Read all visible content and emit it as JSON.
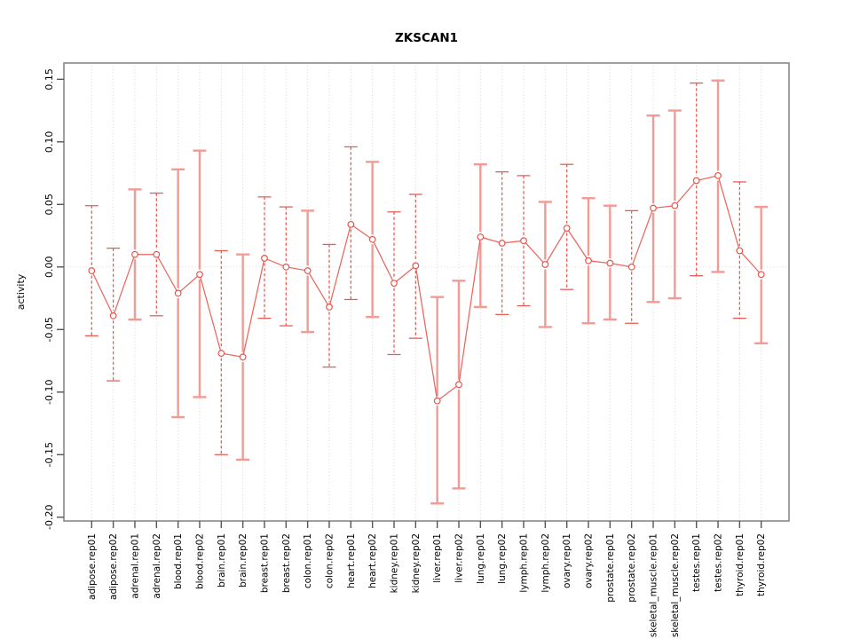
{
  "header": {
    "title": "ZKSCAN1"
  },
  "chart_data": {
    "type": "line",
    "title": "ZKSCAN1",
    "xlabel": "",
    "ylabel": "activity",
    "ylim": [
      -0.203,
      0.163
    ],
    "yticks": [
      0.15,
      0.1,
      0.05,
      0.0,
      -0.05,
      -0.1,
      -0.15,
      -0.2
    ],
    "ytick_labels": [
      "0.15",
      "0.10",
      "0.05",
      "0.00",
      "-0.05",
      "-0.10",
      "-0.15",
      "-0.20"
    ],
    "grid": "vertical dotted line at each category; dotted horizontal line at y=0",
    "legend_position": "none",
    "marker": "open-circle",
    "categories": [
      "adipose.rep01",
      "adipose.rep02",
      "adrenal.rep01",
      "adrenal.rep02",
      "blood.rep01",
      "blood.rep02",
      "brain.rep01",
      "brain.rep02",
      "breast.rep01",
      "breast.rep02",
      "colon.rep01",
      "colon.rep02",
      "heart.rep01",
      "heart.rep02",
      "kidney.rep01",
      "kidney.rep02",
      "liver.rep01",
      "liver.rep02",
      "lung.rep01",
      "lung.rep02",
      "lymph.rep01",
      "lymph.rep02",
      "ovary.rep01",
      "ovary.rep02",
      "prostate.rep01",
      "prostate.rep02",
      "skeletal_muscle.rep01",
      "skeletal_muscle.rep02",
      "testes.rep01",
      "testes.rep02",
      "thyroid.rep01",
      "thyroid.rep02"
    ],
    "series": [
      {
        "name": "activity",
        "values": [
          -0.003,
          -0.039,
          0.01,
          0.01,
          -0.021,
          -0.006,
          -0.069,
          -0.072,
          0.007,
          0.0,
          -0.003,
          -0.032,
          0.034,
          0.022,
          -0.013,
          0.001,
          -0.107,
          -0.094,
          0.024,
          0.019,
          0.021,
          0.002,
          0.031,
          0.005,
          0.003,
          0.0,
          0.047,
          0.049,
          0.069,
          0.073,
          0.013,
          -0.006
        ],
        "error_low": [
          -0.055,
          -0.091,
          -0.042,
          -0.039,
          -0.12,
          -0.104,
          -0.15,
          -0.154,
          -0.041,
          -0.047,
          -0.052,
          -0.08,
          -0.026,
          -0.04,
          -0.07,
          -0.057,
          -0.189,
          -0.177,
          -0.032,
          -0.038,
          -0.031,
          -0.048,
          -0.018,
          -0.045,
          -0.042,
          -0.045,
          -0.028,
          -0.025,
          -0.007,
          -0.004,
          -0.041,
          -0.061
        ],
        "error_high": [
          0.049,
          0.015,
          0.062,
          0.059,
          0.078,
          0.093,
          0.013,
          0.01,
          0.056,
          0.048,
          0.045,
          0.018,
          0.096,
          0.084,
          0.044,
          0.058,
          -0.024,
          -0.011,
          0.082,
          0.076,
          0.073,
          0.052,
          0.082,
          0.055,
          0.049,
          0.045,
          0.121,
          0.125,
          0.147,
          0.149,
          0.068,
          0.048
        ]
      }
    ],
    "error_bar_styles": [
      "dashed",
      "dashed",
      "solid",
      "dashed",
      "solid",
      "solid",
      "dashed",
      "solid",
      "dashed",
      "dashed",
      "solid",
      "dashed",
      "dashed",
      "solid",
      "dashed",
      "dashed",
      "solid",
      "solid",
      "solid",
      "dashed",
      "dashed",
      "solid",
      "dashed",
      "solid",
      "solid",
      "dashed",
      "solid",
      "solid",
      "dashed",
      "solid",
      "dashed",
      "solid"
    ],
    "colors": {
      "point": "#e4564e",
      "series_line": "#ec655c",
      "error_bar_dashed": "#e65a52",
      "error_bar_solid": "#f49a94",
      "grid": "#d4d4d4",
      "zero_line": "#dadada",
      "box": "#888888",
      "tick": "#555555",
      "text": "#000000"
    }
  }
}
